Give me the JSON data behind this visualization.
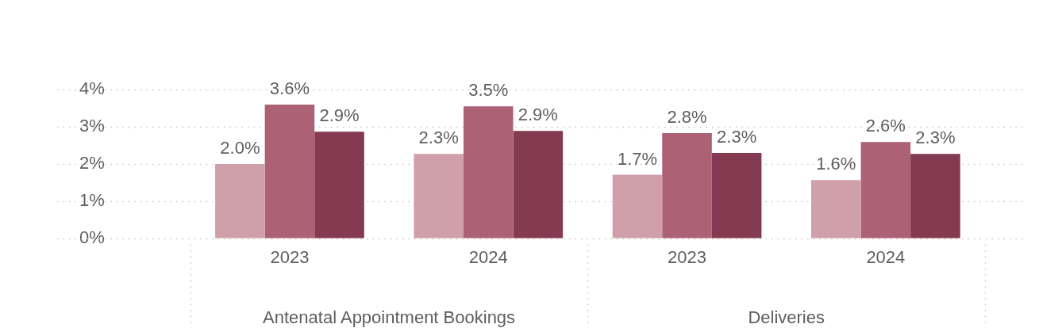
{
  "chart_data": {
    "type": "bar",
    "categories": [
      "2023",
      "2024",
      "2023",
      "2024"
    ],
    "series": [
      {
        "color": "#d0a0aa",
        "values": [
          2.0,
          2.27,
          1.71,
          1.57
        ],
        "value_labels": [
          "2.0%",
          "2.3%",
          "1.7%",
          "1.6%"
        ]
      },
      {
        "color": "#ac6174",
        "values": [
          3.6,
          3.55,
          2.83,
          2.59
        ],
        "value_labels": [
          "3.6%",
          "3.5%",
          "2.8%",
          "2.6%"
        ]
      },
      {
        "color": "#843a50",
        "values": [
          2.87,
          2.89,
          2.3,
          2.27
        ],
        "value_labels": [
          "2.9%",
          "2.9%",
          "2.3%",
          "2.3%"
        ]
      }
    ],
    "annotations": [
      "Antenatal Appointment Bookings",
      "Deliveries"
    ],
    "ylim": [
      0,
      4
    ],
    "yticks": [
      {
        "value": 0,
        "label": "0%"
      },
      {
        "value": 1,
        "label": "1%"
      },
      {
        "value": 2,
        "label": "2%"
      },
      {
        "value": 3,
        "label": "3%"
      },
      {
        "value": 4,
        "label": "4%"
      }
    ],
    "grid": "y",
    "legend": false
  }
}
